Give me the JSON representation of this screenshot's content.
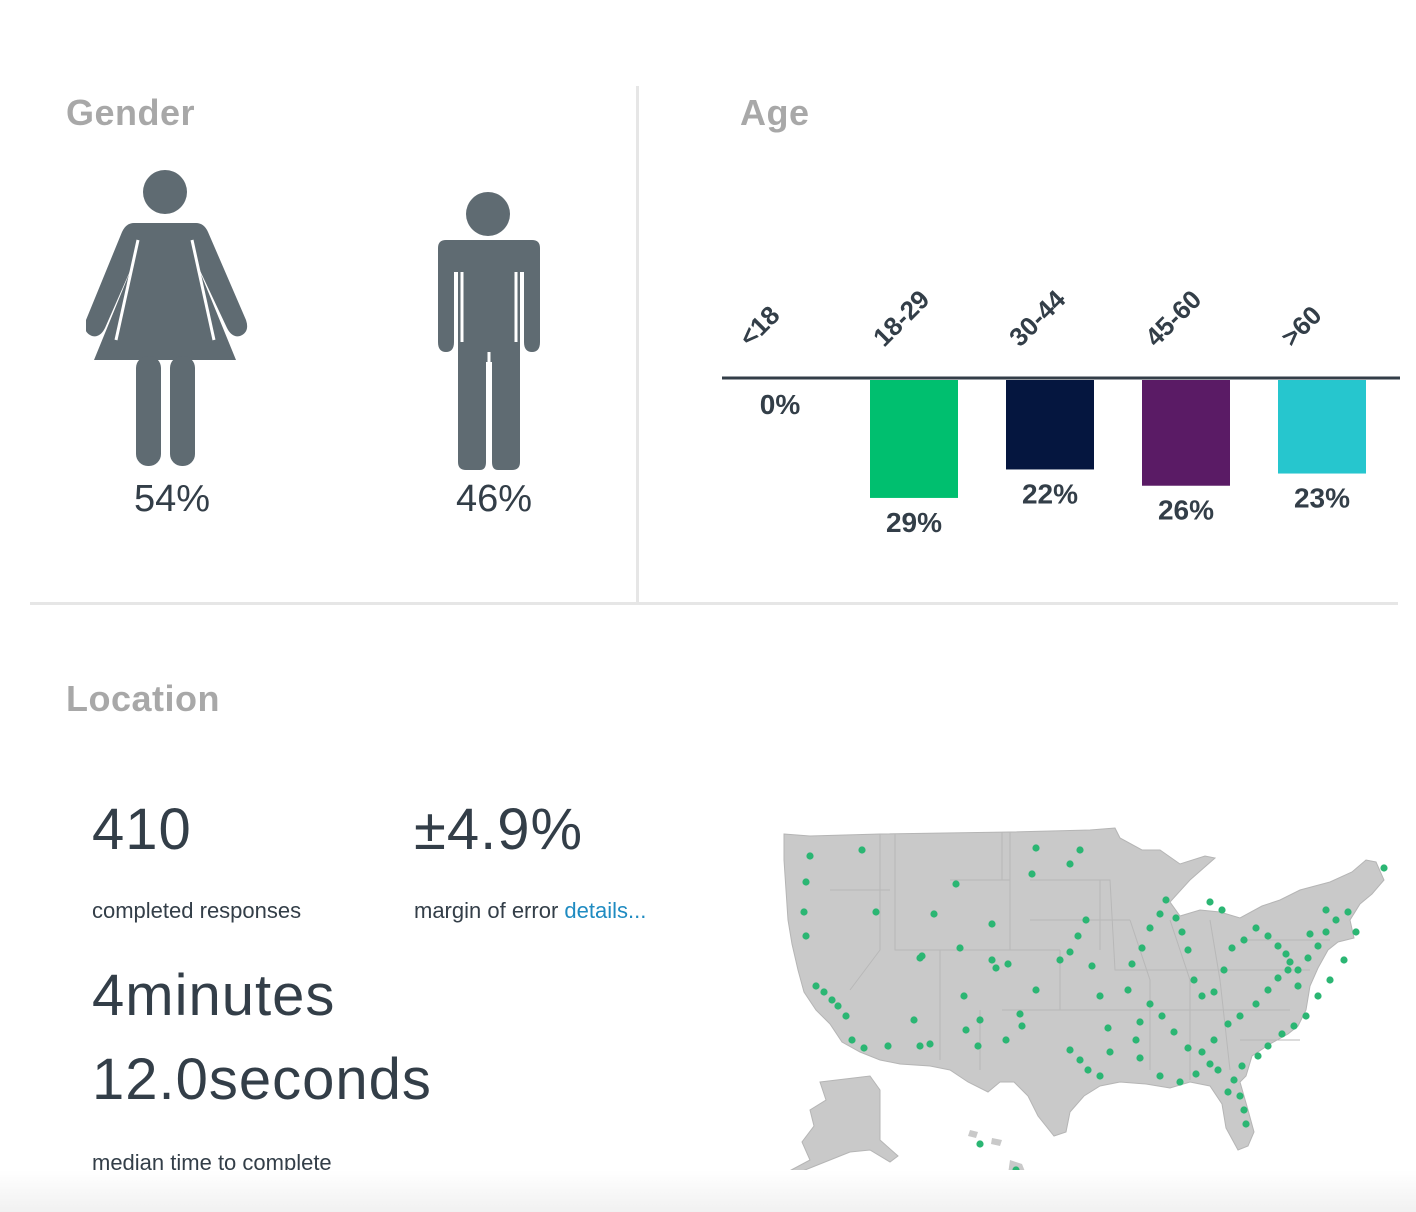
{
  "gender": {
    "title": "Gender",
    "items": [
      {
        "label": "female",
        "value": "54%",
        "icon": "female-figure-icon"
      },
      {
        "label": "male",
        "value": "46%",
        "icon": "male-figure-icon"
      }
    ],
    "icon_color": "#5f6b72"
  },
  "age": {
    "title": "Age"
  },
  "chart_data": {
    "type": "bar",
    "title": "Age",
    "categories": [
      "<18",
      "18-29",
      "30-44",
      "45-60",
      ">60"
    ],
    "values": [
      0,
      29,
      22,
      26,
      23
    ],
    "labels": [
      "0%",
      "29%",
      "22%",
      "26%",
      "23%"
    ],
    "colors": [
      "#00bf6f",
      "#00bf6f",
      "#05163f",
      "#5a1b65",
      "#26c6ce"
    ],
    "ylim": [
      0,
      30
    ],
    "orientation": "hanging-from-baseline"
  },
  "location": {
    "title": "Location",
    "responses_value": "410",
    "responses_label": "completed responses",
    "margin_value": "±4.9%",
    "margin_label": "margin of error",
    "details_link": "details...",
    "time_line1": "4minutes",
    "time_line2": "12.0seconds",
    "time_label": "median time to complete",
    "map_icon": "us-map-with-respondent-dots",
    "map_color": "#c9c9c9",
    "dot_color": "#2bb673"
  }
}
